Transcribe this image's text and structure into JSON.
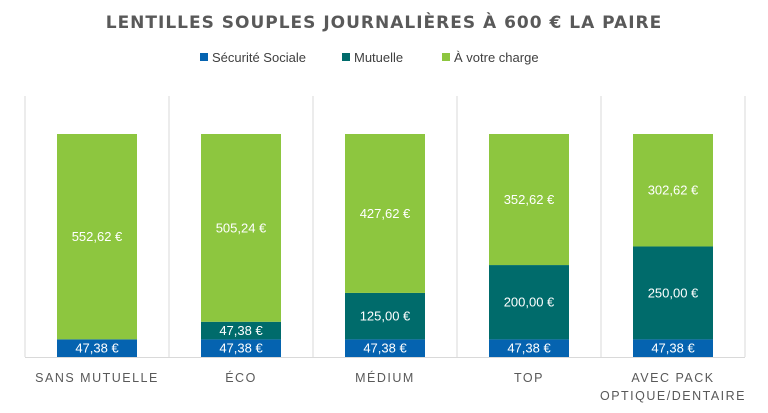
{
  "chart_data": {
    "type": "bar",
    "stacked": true,
    "title": "LENTILLES SOUPLES JOURNALIÈRES À 600 € LA PAIRE",
    "legend_position": "top",
    "categories": [
      [
        "SANS MUTUELLE"
      ],
      [
        "ÉCO"
      ],
      [
        "MÉDIUM"
      ],
      [
        "TOP"
      ],
      [
        "AVEC PACK",
        "OPTIQUE/DENTAIRE"
      ]
    ],
    "series": [
      {
        "name": "Sécurité Sociale",
        "color": "#0563b0",
        "values": [
          47.38,
          47.38,
          47.38,
          47.38,
          47.38
        ],
        "labels": [
          "47,38 €",
          "47,38 €",
          "47,38 €",
          "47,38 €",
          "47,38 €"
        ]
      },
      {
        "name": "Mutuelle",
        "color": "#006b6b",
        "values": [
          0,
          47.38,
          125.0,
          200.0,
          250.0
        ],
        "labels": [
          "",
          "47,38 €",
          "125,00 €",
          "200,00 €",
          "250,00 €"
        ]
      },
      {
        "name": "À votre charge",
        "color": "#8dc63f",
        "values": [
          552.62,
          505.24,
          427.62,
          352.62,
          302.62
        ],
        "labels": [
          "552,62 €",
          "505,24 €",
          "427,62 €",
          "352,62 €",
          "302,62 €"
        ]
      }
    ],
    "ylim": [
      0,
      600
    ],
    "grid": false
  }
}
